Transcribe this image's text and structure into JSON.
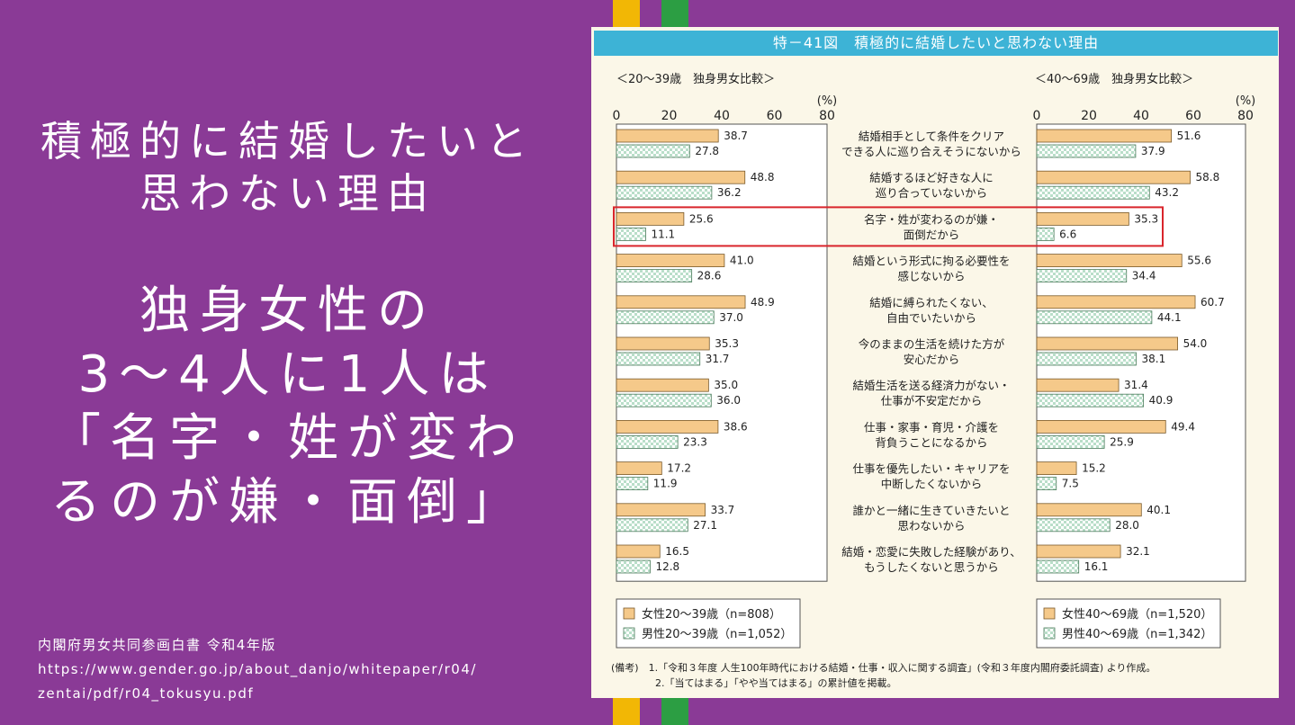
{
  "left": {
    "title_lines": [
      "積極的に結婚したいと",
      "思わない理由"
    ],
    "headline_lines": [
      "独身女性の",
      "3～4人に1人は",
      "「名字・姓が変わ",
      "るのが嫌・面倒」"
    ],
    "source_lines": [
      "内閣府男女共同参画白書 令和4年版",
      "https://www.gender.go.jp/about_danjo/whitepaper/r04/",
      "zentai/pdf/r04_tokusyu.pdf"
    ]
  },
  "colors": {
    "background": "#8a3a96",
    "stripe_yellow": "#f2b705",
    "stripe_green": "#2c9e43",
    "female_bar": "#f5c98a",
    "male_bar": "#b9dec9",
    "highlight": "#d9252c",
    "title_bar": "#3db3d6"
  },
  "chart_data": {
    "type": "bar",
    "title": "特－41図　積極的に結婚したいと思わない理由",
    "unit": "(%)",
    "xlim": [
      0,
      80
    ],
    "ticks": [
      "0",
      "20",
      "40",
      "60",
      "80"
    ],
    "categories": [
      [
        "結婚相手として条件をクリア",
        "できる人に巡り合えそうにないから"
      ],
      [
        "結婚するほど好きな人に",
        "巡り合っていないから"
      ],
      [
        "名字・姓が変わるのが嫌・",
        "面倒だから"
      ],
      [
        "結婚という形式に拘る必要性を",
        "感じないから"
      ],
      [
        "結婚に縛られたくない、",
        "自由でいたいから"
      ],
      [
        "今のままの生活を続けた方が",
        "安心だから"
      ],
      [
        "結婚生活を送る経済力がない・",
        "仕事が不安定だから"
      ],
      [
        "仕事・家事・育児・介護を",
        "背負うことになるから"
      ],
      [
        "仕事を優先したい・キャリアを",
        "中断したくないから"
      ],
      [
        "誰かと一緒に生きていきたいと",
        "思わないから"
      ],
      [
        "結婚・恋愛に失敗した経験があり、",
        "もうしたくないと思うから"
      ]
    ],
    "highlight_index": 2,
    "panels": [
      {
        "subtitle": "＜20～39歳　独身男女比較＞",
        "series": [
          {
            "name": "女性20～39歳（n=808）",
            "values": [
              38.7,
              48.8,
              25.6,
              41.0,
              48.9,
              35.3,
              35.0,
              38.6,
              17.2,
              33.7,
              16.5
            ]
          },
          {
            "name": "男性20～39歳（n=1,052）",
            "values": [
              27.8,
              36.2,
              11.1,
              28.6,
              37.0,
              31.7,
              36.0,
              23.3,
              11.9,
              27.1,
              12.8
            ]
          }
        ]
      },
      {
        "subtitle": "＜40～69歳　独身男女比較＞",
        "series": [
          {
            "name": "女性40～69歳（n=1,520）",
            "values": [
              51.6,
              58.8,
              35.3,
              55.6,
              60.7,
              54.0,
              31.4,
              49.4,
              15.2,
              40.1,
              32.1
            ]
          },
          {
            "name": "男性40～69歳（n=1,342）",
            "values": [
              37.9,
              43.2,
              6.6,
              34.4,
              44.1,
              38.1,
              40.9,
              25.9,
              7.5,
              28.0,
              16.1
            ]
          }
        ]
      }
    ],
    "notes": [
      "(備考)　1.「令和３年度 人生100年時代における結婚・仕事・収入に関する調査」(令和３年度内閣府委託調査) より作成。",
      "2.「当てはまる」「やや当てはまる」の累計値を掲載。"
    ]
  }
}
